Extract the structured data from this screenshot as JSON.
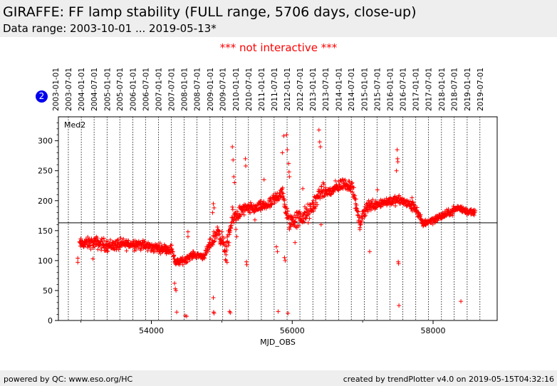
{
  "header": {
    "title": "GIRAFFE: FF lamp stability (FULL range, 5706 days, close-up)",
    "subtitle": "Data range: 2003-10-01 ... 2019-05-13*"
  },
  "notice": "*** not interactive ***",
  "badge": "2",
  "footer": {
    "left": "powered by QC: www.eso.org/HC",
    "right": "created by trendPlotter v4.0 on 2019-05-15T04:32:16"
  },
  "chart_data": {
    "type": "scatter",
    "panel_label": "Med2",
    "xlabel": "MJD_OBS",
    "ylabel": "",
    "xlim": [
      52680,
      58910
    ],
    "ylim": [
      0,
      340
    ],
    "x_ticks": [
      54000,
      56000,
      58000
    ],
    "y_ticks": [
      0,
      50,
      100,
      150,
      200,
      250,
      300
    ],
    "reference_line": 163,
    "marker": "+",
    "color": "#ff0000",
    "date_ticks": [
      {
        "label": "2003-01-01",
        "mjd": 52640
      },
      {
        "label": "2003-07-01",
        "mjd": 52821
      },
      {
        "label": "2004-01-01",
        "mjd": 53005
      },
      {
        "label": "2004-07-01",
        "mjd": 53187
      },
      {
        "label": "2005-01-01",
        "mjd": 53371
      },
      {
        "label": "2005-07-01",
        "mjd": 53552
      },
      {
        "label": "2006-01-01",
        "mjd": 53736
      },
      {
        "label": "2006-07-01",
        "mjd": 53917
      },
      {
        "label": "2007-01-01",
        "mjd": 54101
      },
      {
        "label": "2007-07-01",
        "mjd": 54282
      },
      {
        "label": "2008-01-01",
        "mjd": 54466
      },
      {
        "label": "2008-07-01",
        "mjd": 54648
      },
      {
        "label": "2009-01-01",
        "mjd": 54832
      },
      {
        "label": "2009-07-01",
        "mjd": 55013
      },
      {
        "label": "2010-01-01",
        "mjd": 55197
      },
      {
        "label": "2010-07-01",
        "mjd": 55378
      },
      {
        "label": "2011-01-01",
        "mjd": 55562
      },
      {
        "label": "2011-07-01",
        "mjd": 55743
      },
      {
        "label": "2012-01-01",
        "mjd": 55927
      },
      {
        "label": "2012-07-01",
        "mjd": 56109
      },
      {
        "label": "2013-01-01",
        "mjd": 56293
      },
      {
        "label": "2013-07-01",
        "mjd": 56474
      },
      {
        "label": "2014-01-01",
        "mjd": 56658
      },
      {
        "label": "2014-07-01",
        "mjd": 56839
      },
      {
        "label": "2015-01-01",
        "mjd": 57023
      },
      {
        "label": "2015-07-01",
        "mjd": 57204
      },
      {
        "label": "2016-01-01",
        "mjd": 57388
      },
      {
        "label": "2016-07-01",
        "mjd": 57570
      },
      {
        "label": "2017-01-01",
        "mjd": 57754
      },
      {
        "label": "2017-07-01",
        "mjd": 57935
      },
      {
        "label": "2018-01-01",
        "mjd": 58119
      },
      {
        "label": "2018-07-01",
        "mjd": 58300
      },
      {
        "label": "2019-01-01",
        "mjd": 58484
      },
      {
        "label": "2019-07-01",
        "mjd": 58665
      }
    ],
    "trend": [
      [
        52980,
        128,
        8
      ],
      [
        53200,
        130,
        10
      ],
      [
        53400,
        125,
        10
      ],
      [
        53600,
        127,
        9
      ],
      [
        53800,
        128,
        9
      ],
      [
        54000,
        122,
        8
      ],
      [
        54200,
        120,
        7
      ],
      [
        54300,
        118,
        8
      ],
      [
        54340,
        96,
        5
      ],
      [
        54450,
        100,
        6
      ],
      [
        54600,
        110,
        5
      ],
      [
        54750,
        107,
        5
      ],
      [
        54850,
        130,
        10
      ],
      [
        54950,
        150,
        12
      ],
      [
        55060,
        115,
        15
      ],
      [
        55150,
        170,
        15
      ],
      [
        55300,
        185,
        10
      ],
      [
        55500,
        188,
        8
      ],
      [
        55700,
        195,
        10
      ],
      [
        55850,
        215,
        12
      ],
      [
        55950,
        165,
        15
      ],
      [
        56100,
        170,
        15
      ],
      [
        56250,
        180,
        15
      ],
      [
        56400,
        215,
        12
      ],
      [
        56550,
        215,
        10
      ],
      [
        56700,
        228,
        10
      ],
      [
        56850,
        225,
        10
      ],
      [
        56960,
        160,
        8
      ],
      [
        57050,
        190,
        12
      ],
      [
        57200,
        195,
        8
      ],
      [
        57400,
        200,
        8
      ],
      [
        57550,
        200,
        8
      ],
      [
        57750,
        188,
        8
      ],
      [
        57850,
        162,
        6
      ],
      [
        58000,
        168,
        6
      ],
      [
        58200,
        178,
        6
      ],
      [
        58350,
        188,
        6
      ],
      [
        58500,
        182,
        6
      ],
      [
        58600,
        180,
        5
      ]
    ],
    "outliers": [
      [
        52955,
        97
      ],
      [
        52955,
        104
      ],
      [
        53170,
        103
      ],
      [
        54330,
        62
      ],
      [
        54340,
        53
      ],
      [
        54350,
        50
      ],
      [
        54360,
        14
      ],
      [
        54480,
        8
      ],
      [
        54500,
        7
      ],
      [
        54520,
        148
      ],
      [
        54520,
        140
      ],
      [
        54880,
        38
      ],
      [
        54885,
        14
      ],
      [
        54890,
        12
      ],
      [
        54880,
        195
      ],
      [
        54890,
        188
      ],
      [
        54870,
        180
      ],
      [
        55060,
        100
      ],
      [
        55075,
        97
      ],
      [
        55110,
        15
      ],
      [
        55120,
        13
      ],
      [
        55150,
        290
      ],
      [
        55160,
        268
      ],
      [
        55170,
        240
      ],
      [
        55180,
        230
      ],
      [
        55200,
        152
      ],
      [
        55210,
        140
      ],
      [
        55335,
        270
      ],
      [
        55340,
        258
      ],
      [
        55350,
        98
      ],
      [
        55355,
        93
      ],
      [
        55470,
        168
      ],
      [
        55600,
        235
      ],
      [
        55775,
        123
      ],
      [
        55790,
        115
      ],
      [
        55800,
        15
      ],
      [
        55860,
        280
      ],
      [
        55880,
        308
      ],
      [
        55890,
        105
      ],
      [
        55900,
        100
      ],
      [
        55920,
        310
      ],
      [
        55930,
        285
      ],
      [
        55940,
        12
      ],
      [
        55950,
        262
      ],
      [
        55955,
        248
      ],
      [
        55960,
        240
      ],
      [
        55990,
        168
      ],
      [
        56040,
        130
      ],
      [
        56150,
        220
      ],
      [
        56300,
        200
      ],
      [
        56380,
        318
      ],
      [
        56390,
        298
      ],
      [
        56400,
        290
      ],
      [
        56410,
        160
      ],
      [
        56900,
        195
      ],
      [
        56960,
        152
      ],
      [
        57100,
        115
      ],
      [
        57210,
        218
      ],
      [
        57480,
        250
      ],
      [
        57490,
        285
      ],
      [
        57495,
        270
      ],
      [
        57500,
        265
      ],
      [
        57505,
        98
      ],
      [
        57510,
        95
      ],
      [
        57515,
        25
      ],
      [
        57700,
        205
      ],
      [
        58395,
        32
      ]
    ]
  }
}
